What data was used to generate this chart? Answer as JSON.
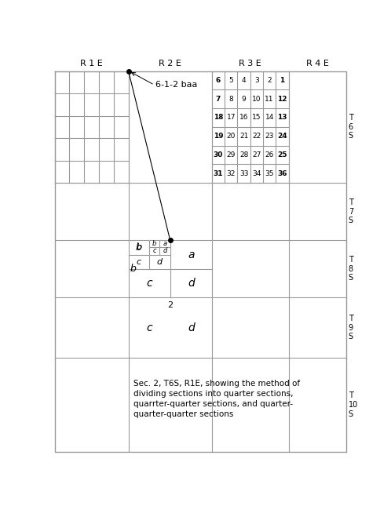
{
  "fig_width": 4.98,
  "fig_height": 6.59,
  "dpi": 100,
  "bg_color": "#ffffff",
  "grid_color": "#999999",
  "text_color": "#000000",
  "range_labels": [
    "R 1 E",
    "R 2 E",
    "R 3 E",
    "R 4 E"
  ],
  "township_labels": [
    "T\n6\nS",
    "T\n7\nS",
    "T\n8\nS",
    "T\n9\nS",
    "T\n10\nS"
  ],
  "section_numbers": [
    [
      "6",
      "5",
      "4",
      "3",
      "2",
      "1"
    ],
    [
      "7",
      "8",
      "9",
      "10",
      "11",
      "12"
    ],
    [
      "18",
      "17",
      "16",
      "15",
      "14",
      "13"
    ],
    [
      "19",
      "20",
      "21",
      "22",
      "23",
      "24"
    ],
    [
      "30",
      "29",
      "28",
      "27",
      "26",
      "25"
    ],
    [
      "31",
      "32",
      "33",
      "34",
      "35",
      "36"
    ]
  ],
  "caption_text": "Sec. 2, T6S, R1E, showing the method of\ndividing sections into quarter sections,\nquarrter-quarter sections, and quarter-\nquarter-quarter sections"
}
